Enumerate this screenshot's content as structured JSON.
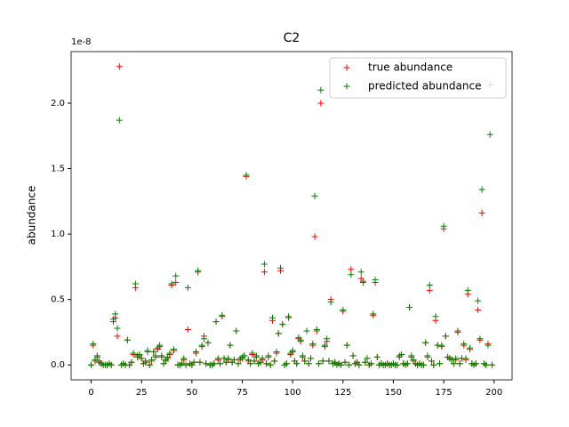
{
  "chart_data": {
    "type": "scatter",
    "title": "C2",
    "y_label": "abundance",
    "y_offset_label": "1e-8",
    "x": [
      0,
      1,
      2,
      3,
      4,
      5,
      6,
      7,
      8,
      9,
      10,
      11,
      12,
      13,
      14,
      15,
      16,
      17,
      18,
      19,
      20,
      21,
      22,
      23,
      24,
      25,
      26,
      27,
      28,
      29,
      30,
      31,
      32,
      33,
      34,
      35,
      36,
      37,
      38,
      39,
      40,
      41,
      42,
      43,
      44,
      45,
      46,
      47,
      48,
      49,
      50,
      51,
      52,
      53,
      54,
      55,
      56,
      57,
      58,
      59,
      60,
      61,
      62,
      63,
      64,
      65,
      66,
      67,
      68,
      69,
      70,
      71,
      72,
      73,
      74,
      75,
      76,
      77,
      78,
      79,
      80,
      81,
      82,
      83,
      84,
      85,
      86,
      87,
      88,
      89,
      90,
      91,
      92,
      93,
      94,
      95,
      96,
      97,
      98,
      99,
      100,
      101,
      102,
      103,
      104,
      105,
      106,
      107,
      108,
      109,
      110,
      111,
      112,
      113,
      114,
      115,
      116,
      117,
      118,
      119,
      120,
      121,
      122,
      123,
      124,
      125,
      126,
      127,
      128,
      129,
      130,
      131,
      132,
      133,
      134,
      135,
      136,
      137,
      138,
      139,
      140,
      141,
      142,
      143,
      144,
      145,
      146,
      147,
      148,
      149,
      150,
      151,
      152,
      153,
      154,
      155,
      156,
      157,
      158,
      159,
      160,
      161,
      162,
      163,
      164,
      165,
      166,
      167,
      168,
      169,
      170,
      171,
      172,
      173,
      174,
      175,
      176,
      177,
      178,
      179,
      180,
      181,
      182,
      183,
      184,
      185,
      186,
      187,
      188,
      189,
      190,
      191,
      192,
      193,
      194,
      195,
      196,
      197,
      198,
      199
    ],
    "series": [
      {
        "name": "true abundance",
        "color": "#ff0000",
        "values": [
          0,
          0.15,
          0.03,
          0.06,
          0.02,
          0.01,
          0,
          0,
          0,
          0.01,
          0,
          0.33,
          0.36,
          0.22,
          2.28,
          0,
          0.01,
          0,
          0.19,
          0,
          0.02,
          0.08,
          0.59,
          0.06,
          0.07,
          0.05,
          0.01,
          0.02,
          0.1,
          0,
          0.03,
          0.1,
          0.06,
          0.12,
          0.14,
          0.06,
          0.01,
          0.03,
          0.05,
          0.08,
          0.61,
          0.11,
          0.63,
          0,
          0,
          0.01,
          0.04,
          0,
          0.27,
          0.01,
          0,
          0.02,
          0.09,
          0.71,
          0.02,
          0.14,
          0.22,
          0.01,
          0.17,
          0,
          0,
          0.01,
          0.33,
          0.04,
          0.01,
          0.37,
          0.05,
          0.02,
          0.04,
          0.15,
          0.02,
          0.04,
          0.26,
          0.01,
          0.04,
          0.05,
          0.07,
          1.44,
          0.03,
          0.01,
          0.08,
          0.03,
          0.06,
          0.01,
          0.02,
          0.04,
          0.71,
          0.01,
          0.06,
          0,
          0.34,
          0.03,
          0.09,
          0.24,
          0.72,
          0.31,
          0,
          0.01,
          0.36,
          0.08,
          0.1,
          0.03,
          0.01,
          0.2,
          0.18,
          0.06,
          0.03,
          0.26,
          0.01,
          0.05,
          0.15,
          0.98,
          0.26,
          0.01,
          2.0,
          0.03,
          0.14,
          0.18,
          0.03,
          0.5,
          0.01,
          0.02,
          0,
          0.01,
          0,
          0.41,
          0.02,
          0.15,
          0,
          0.73,
          0.07,
          0.01,
          0.02,
          0,
          0.66,
          0.64,
          0.02,
          0.05,
          0,
          0.01,
          0.38,
          0.63,
          0.06,
          0,
          0.01,
          0,
          0,
          0.01,
          0,
          0,
          0.01,
          0,
          0,
          0.06,
          0.08,
          0.01,
          0,
          0.01,
          0.44,
          0.06,
          0.03,
          0.01,
          0,
          0.01,
          0,
          0,
          0.17,
          0.06,
          0.57,
          0.03,
          0,
          0.34,
          0.15,
          0.01,
          0.14,
          1.04,
          0.22,
          0.06,
          0.05,
          0.04,
          0.01,
          0.04,
          0.26,
          0.01,
          0.05,
          0.15,
          0.04,
          0.54,
          0.12,
          0.01,
          0,
          0.01,
          0.42,
          0.19,
          1.16,
          0.01,
          0,
          0.16,
          2.14,
          0
        ]
      },
      {
        "name": "predicted abundance",
        "color": "#008000",
        "values": [
          0,
          0.16,
          0.04,
          0.07,
          0.03,
          0.01,
          0,
          0,
          0,
          0.01,
          0,
          0.35,
          0.39,
          0.28,
          1.87,
          0,
          0.01,
          0,
          0.19,
          0,
          0.02,
          0.09,
          0.62,
          0.07,
          0.08,
          0.05,
          0.01,
          0.03,
          0.11,
          0,
          0.04,
          0.1,
          0.07,
          0.13,
          0.15,
          0.07,
          0.01,
          0.04,
          0.06,
          0.09,
          0.62,
          0.12,
          0.68,
          0,
          0,
          0.01,
          0.05,
          0,
          0.59,
          0.01,
          0,
          0.02,
          0.1,
          0.72,
          0.02,
          0.15,
          0.2,
          0.01,
          0.17,
          0,
          0,
          0.01,
          0.33,
          0.05,
          0.01,
          0.38,
          0.05,
          0.02,
          0.05,
          0.15,
          0.02,
          0.04,
          0.26,
          0.01,
          0.05,
          0.06,
          0.07,
          1.45,
          0.04,
          0.01,
          0.09,
          0.03,
          0.07,
          0.01,
          0.02,
          0.05,
          0.77,
          0.01,
          0.07,
          0,
          0.36,
          0.03,
          0.1,
          0.24,
          0.74,
          0.31,
          0,
          0.01,
          0.37,
          0.09,
          0.11,
          0.03,
          0.01,
          0.21,
          0.19,
          0.07,
          0.03,
          0.26,
          0.01,
          0.05,
          0.16,
          1.29,
          0.27,
          0.01,
          2.1,
          0.03,
          0.15,
          0.2,
          0.03,
          0.48,
          0.01,
          0.02,
          0,
          0.01,
          0,
          0.42,
          0.02,
          0.15,
          0,
          0.69,
          0.07,
          0.01,
          0.02,
          0,
          0.71,
          0.63,
          0.02,
          0.05,
          0,
          0.01,
          0.39,
          0.65,
          0.06,
          0,
          0.01,
          0,
          0,
          0.01,
          0,
          0,
          0.01,
          0,
          0,
          0.07,
          0.08,
          0.01,
          0,
          0.01,
          0.44,
          0.07,
          0.04,
          0.01,
          0,
          0.01,
          0,
          0,
          0.17,
          0.07,
          0.61,
          0.03,
          0,
          0.37,
          0.15,
          0.01,
          0.15,
          1.06,
          0.22,
          0.06,
          0.05,
          0.04,
          0.01,
          0.05,
          0.25,
          0.01,
          0.05,
          0.16,
          0.05,
          0.57,
          0.13,
          0.01,
          0,
          0.01,
          0.49,
          0.2,
          1.34,
          0.01,
          0,
          0.15,
          1.76,
          0
        ]
      }
    ],
    "xlim": [
      -9.95,
      208.95
    ],
    "xticks": [
      0,
      25,
      50,
      75,
      100,
      125,
      150,
      175,
      200
    ],
    "ylim": [
      -0.114,
      2.394
    ],
    "yticks": [
      {
        "value": 0,
        "label": "0.0"
      },
      0.5,
      {
        "value": 1,
        "label": "1.0"
      },
      1.5,
      {
        "value": 2,
        "label": "2.0"
      }
    ],
    "legend": "upper right"
  }
}
